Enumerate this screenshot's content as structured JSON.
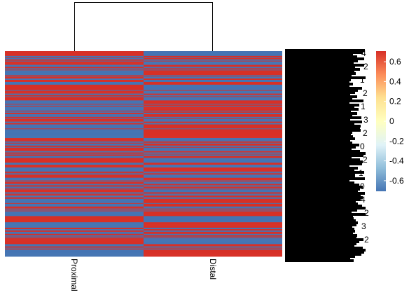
{
  "chart_data": {
    "type": "heatmap",
    "title": "",
    "columns": [
      "Proximal",
      "Distal"
    ],
    "column_dendrogram": true,
    "row_count": 300,
    "row_values_note": "",
    "color_scale": {
      "min": -0.7071,
      "max": 0.7071,
      "low_color": "#4575B4",
      "mid_color": "#FFFFBF",
      "high_color": "#D73027",
      "stops": [
        {
          "value": -0.7071,
          "color": "#4575B4"
        },
        {
          "value": -0.47,
          "color": "#91BFDB"
        },
        {
          "value": -0.24,
          "color": "#E0F3F8"
        },
        {
          "value": 0,
          "color": "#FFFFBF"
        },
        {
          "value": 0.24,
          "color": "#FEE090"
        },
        {
          "value": 0.47,
          "color": "#FC8D59"
        },
        {
          "value": 0.7071,
          "color": "#D73027"
        }
      ]
    },
    "legend": {
      "position": "right",
      "ticks": [
        0.6,
        0.4,
        0.2,
        0,
        -0.2,
        -0.4,
        -0.6
      ],
      "tick_labels": [
        "0.6",
        "0.4",
        "0.2",
        "0",
        "-0.2",
        "-0.4",
        "-0.6"
      ]
    },
    "row_labels_legible": false,
    "row_label_suffix_fragments": [
      "4",
      "2",
      "1",
      "2",
      "1",
      "3",
      "2",
      "0",
      "2",
      "1",
      "0",
      "4",
      "2",
      "3",
      "2"
    ]
  }
}
